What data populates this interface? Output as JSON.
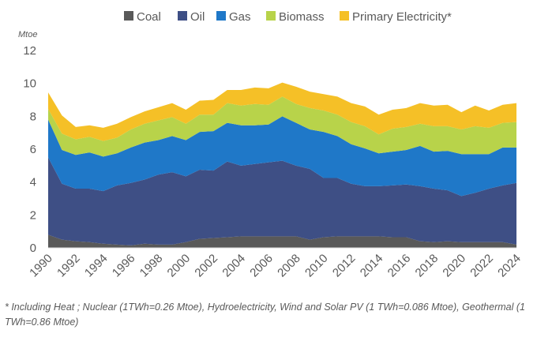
{
  "chart_data": {
    "type": "area",
    "stacked": true,
    "ylabel": "Mtoe",
    "ylim": [
      0,
      12
    ],
    "yticks": [
      0,
      2,
      4,
      6,
      8,
      10,
      12
    ],
    "grid": false,
    "legend_position": "top",
    "x": [
      1990,
      1991,
      1992,
      1993,
      1994,
      1995,
      1996,
      1997,
      1998,
      1999,
      2000,
      2001,
      2002,
      2003,
      2004,
      2005,
      2006,
      2007,
      2008,
      2009,
      2010,
      2011,
      2012,
      2013,
      2014,
      2015,
      2016,
      2017,
      2018,
      2019,
      2020,
      2021,
      2022,
      2023,
      2024
    ],
    "xticks": [
      "1990",
      "1992",
      "1994",
      "1996",
      "1998",
      "2000",
      "2002",
      "2004",
      "2006",
      "2008",
      "2010",
      "2012",
      "2014",
      "2016",
      "2018",
      "2020",
      "2022",
      "2024"
    ],
    "series": [
      {
        "name": "Coal",
        "color": "#595959",
        "values": [
          0.8,
          0.5,
          0.4,
          0.35,
          0.25,
          0.2,
          0.15,
          0.25,
          0.2,
          0.2,
          0.35,
          0.55,
          0.6,
          0.65,
          0.7,
          0.7,
          0.7,
          0.7,
          0.7,
          0.5,
          0.65,
          0.7,
          0.7,
          0.7,
          0.7,
          0.65,
          0.65,
          0.4,
          0.35,
          0.4,
          0.35,
          0.35,
          0.35,
          0.35,
          0.2
        ]
      },
      {
        "name": "Oil",
        "color": "#3e4f85",
        "values": [
          4.7,
          3.4,
          3.2,
          3.25,
          3.2,
          3.6,
          3.8,
          3.9,
          4.25,
          4.4,
          4.0,
          4.2,
          4.1,
          4.6,
          4.3,
          4.4,
          4.5,
          4.6,
          4.3,
          4.3,
          3.6,
          3.55,
          3.2,
          3.05,
          3.05,
          3.15,
          3.2,
          3.35,
          3.25,
          3.1,
          2.8,
          3.0,
          3.25,
          3.45,
          3.75
        ]
      },
      {
        "name": "Gas",
        "color": "#1f78c8",
        "values": [
          2.3,
          2.05,
          2.05,
          2.2,
          2.1,
          1.95,
          2.15,
          2.25,
          2.1,
          2.2,
          2.2,
          2.3,
          2.4,
          2.35,
          2.45,
          2.35,
          2.3,
          2.7,
          2.6,
          2.4,
          2.8,
          2.55,
          2.4,
          2.3,
          2.0,
          2.05,
          2.1,
          2.45,
          2.25,
          2.4,
          2.55,
          2.35,
          2.1,
          2.3,
          2.15
        ]
      },
      {
        "name": "Biomass",
        "color": "#b8d34a",
        "values": [
          0.65,
          1.0,
          0.95,
          0.95,
          0.95,
          0.95,
          1.1,
          1.15,
          1.2,
          1.15,
          1.0,
          1.05,
          1.0,
          1.2,
          1.2,
          1.3,
          1.2,
          1.2,
          1.15,
          1.3,
          1.3,
          1.3,
          1.35,
          1.35,
          1.15,
          1.4,
          1.4,
          1.35,
          1.55,
          1.5,
          1.5,
          1.7,
          1.6,
          1.5,
          1.55
        ]
      },
      {
        "name": "Primary Electricity*",
        "color": "#f5c027",
        "values": [
          1.0,
          1.1,
          0.75,
          0.7,
          0.8,
          0.85,
          0.75,
          0.75,
          0.8,
          0.85,
          0.85,
          0.85,
          0.9,
          0.8,
          0.95,
          1.0,
          1.0,
          0.85,
          1.05,
          1.0,
          1.0,
          1.1,
          1.15,
          1.2,
          1.2,
          1.15,
          1.15,
          1.25,
          1.25,
          1.3,
          1.05,
          1.25,
          1.05,
          1.1,
          1.15
        ]
      }
    ]
  },
  "footnote": "* Including Heat ; Nuclear (1TWh=0.26 Mtoe), Hydroelectricity, Wind and Solar PV (1 TWh=0.086 Mtoe), Geothermal (1 TWh=0.86 Mtoe)"
}
